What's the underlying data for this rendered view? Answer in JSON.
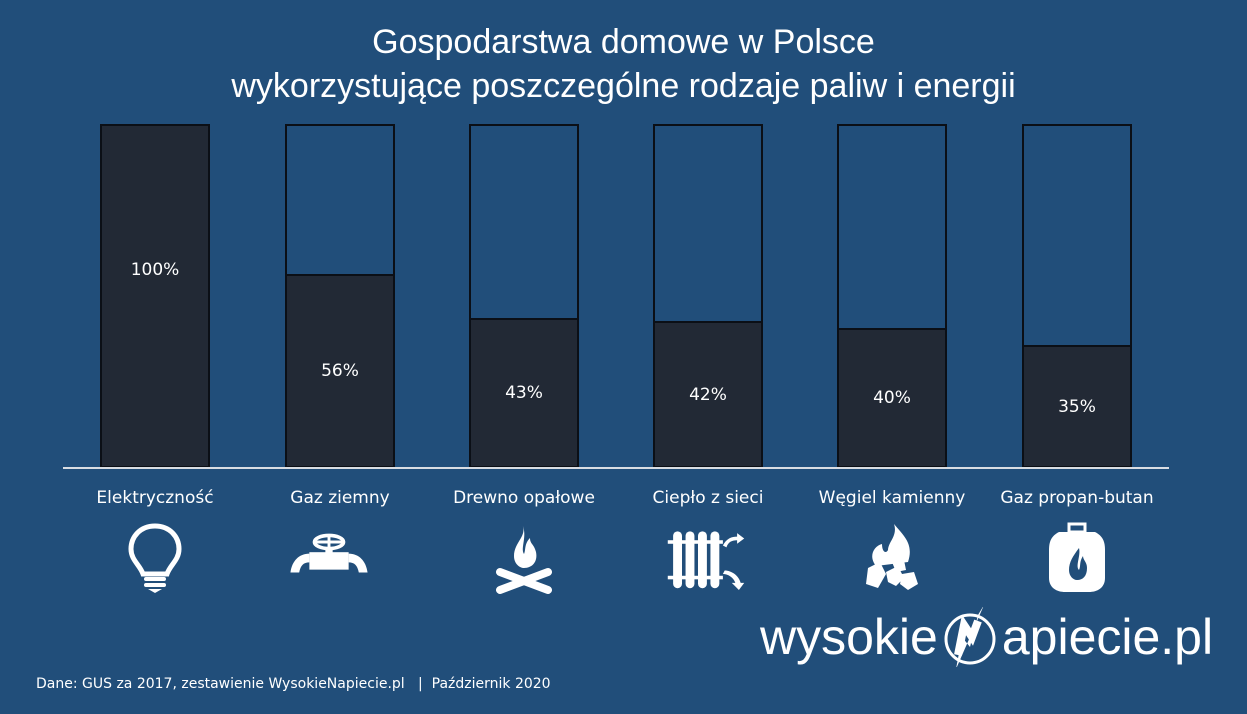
{
  "chart_data": {
    "type": "bar",
    "title": "Gospodarstwa domowe w Polsce wykorzystujące poszczególne rodzaje paliw i energii",
    "title_lines": [
      "Gospodarstwa domowe w Polsce",
      "wykorzystujące poszczególne rodzaje paliw i energii"
    ],
    "categories": [
      "Elektryczność",
      "Gaz ziemny",
      "Drewno opałowe",
      "Ciepło z sieci",
      "Węgiel kamienny",
      "Gaz propan-butan"
    ],
    "values": [
      100,
      56,
      43,
      42,
      40,
      35
    ],
    "value_labels": [
      "100%",
      "56%",
      "43%",
      "42%",
      "40%",
      "35%"
    ],
    "unit": "%",
    "ylim": [
      0,
      100
    ],
    "xlabel": "",
    "ylabel": "",
    "grid": false,
    "legend": null,
    "colors": {
      "background": "#214e7a",
      "fill": "#222935",
      "outline": "#0b0f16",
      "baseline": "#d9dde3"
    }
  },
  "icons": [
    "lightbulb-icon",
    "gas-valve-pipe-icon",
    "campfire-icon",
    "radiator-icon",
    "coal-fire-icon",
    "gas-cylinder-icon"
  ],
  "footer": {
    "source": "Dane: GUS za 2017, zestawienie WysokieNapiecie.pl   |  Październik 2020"
  },
  "logo": {
    "left": "wysokie",
    "right": "apiecie.pl"
  }
}
